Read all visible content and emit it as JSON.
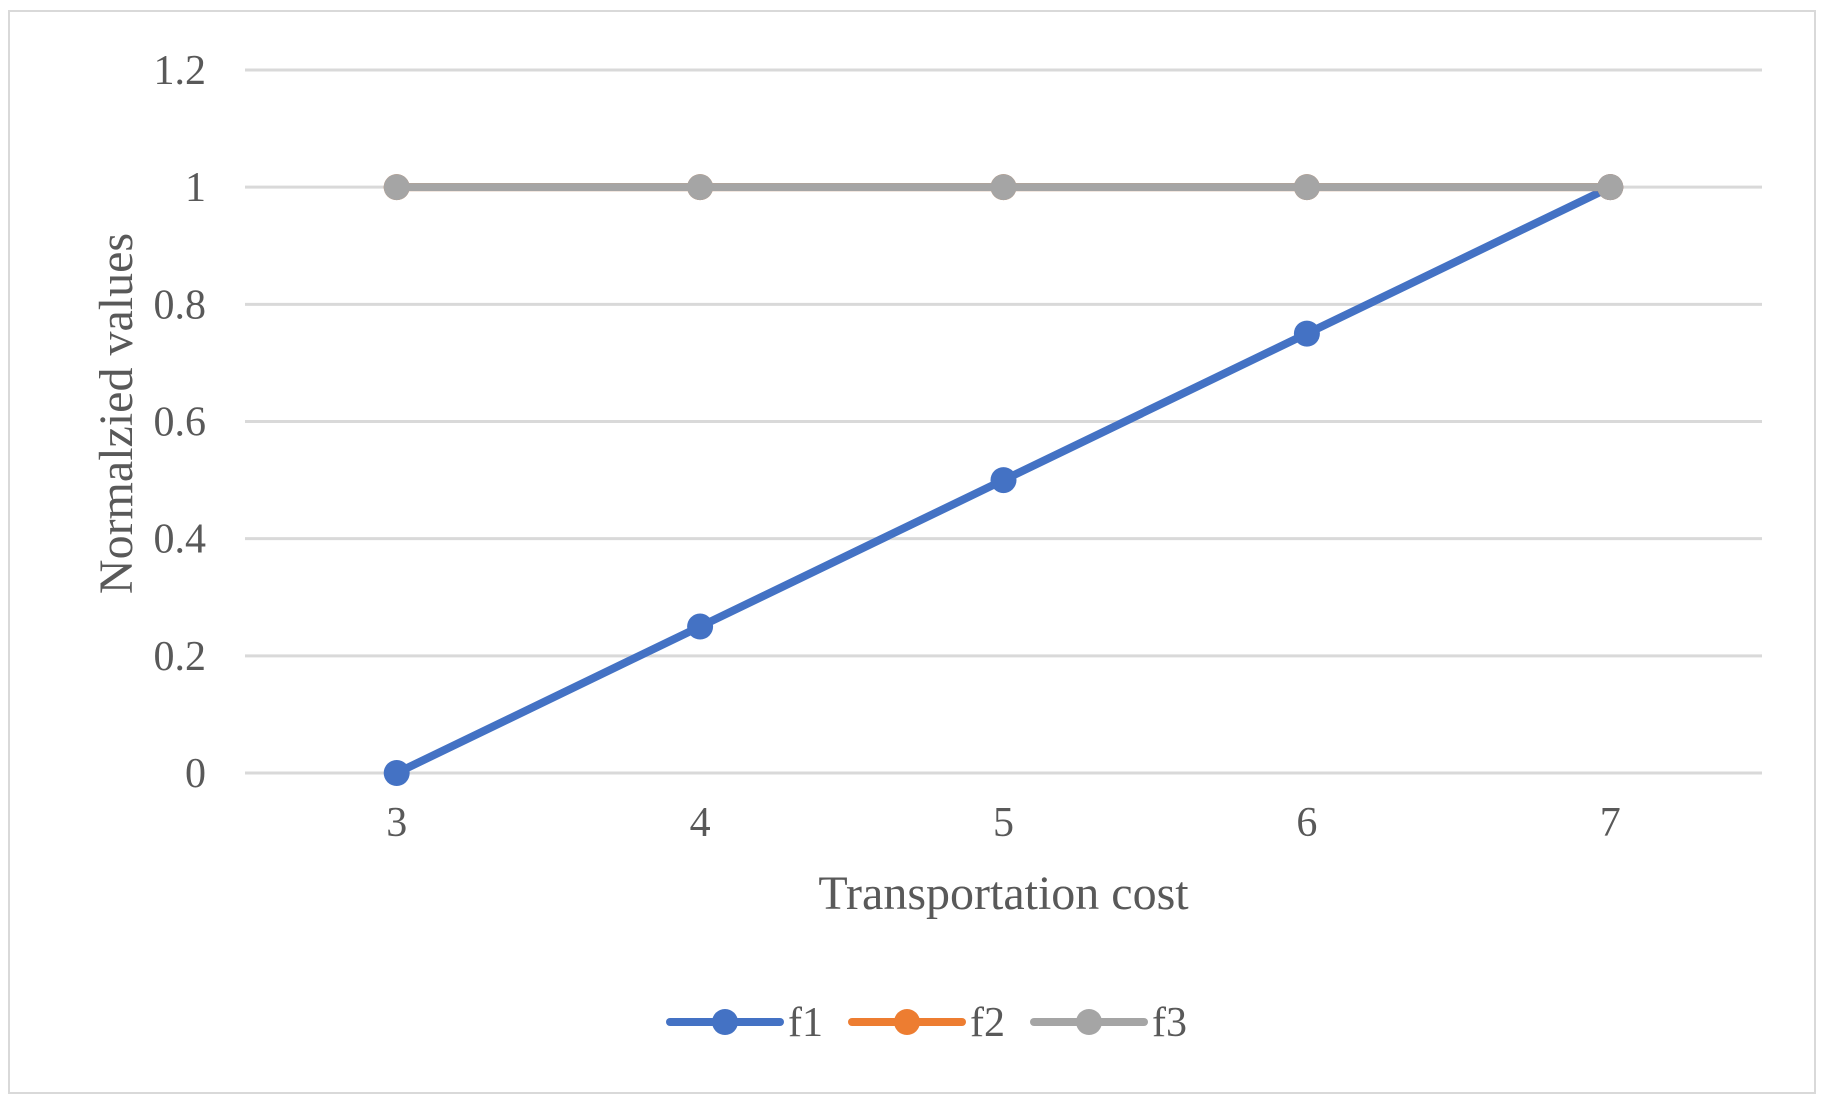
{
  "chart_data": {
    "type": "line",
    "title": "",
    "xlabel": "Transportation cost",
    "ylabel": "Normalzied values",
    "categories": [
      "3",
      "4",
      "5",
      "6",
      "7"
    ],
    "yticks": [
      "0",
      "0.2",
      "0.4",
      "0.6",
      "0.8",
      "1",
      "1.2"
    ],
    "ylim": [
      0,
      1.2
    ],
    "grid": true,
    "legend_position": "bottom",
    "series": [
      {
        "name": "f1",
        "color": "#4472c4",
        "values": [
          0,
          0.25,
          0.5,
          0.75,
          1
        ]
      },
      {
        "name": "f2",
        "color": "#ed7d31",
        "values": [
          1,
          1,
          1,
          1,
          1
        ]
      },
      {
        "name": "f3",
        "color": "#a5a5a5",
        "values": [
          1,
          1,
          1,
          1,
          1
        ]
      }
    ]
  }
}
